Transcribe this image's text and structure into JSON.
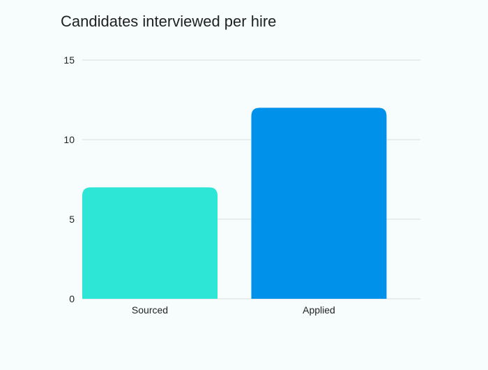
{
  "chart_data": {
    "type": "bar",
    "title": "Candidates interviewed per hire",
    "categories": [
      "Sourced",
      "Applied"
    ],
    "values": [
      7,
      12
    ],
    "xlabel": "",
    "ylabel": "",
    "ylim": [
      0,
      15
    ],
    "yticks": [
      0,
      5,
      10,
      15
    ],
    "grid": true,
    "legend": "none",
    "colors": [
      "#2de6d6",
      "#0092ea"
    ],
    "background": "#f7fdfd",
    "gridColor": "#d9dcdc",
    "textColor": "#222222"
  }
}
